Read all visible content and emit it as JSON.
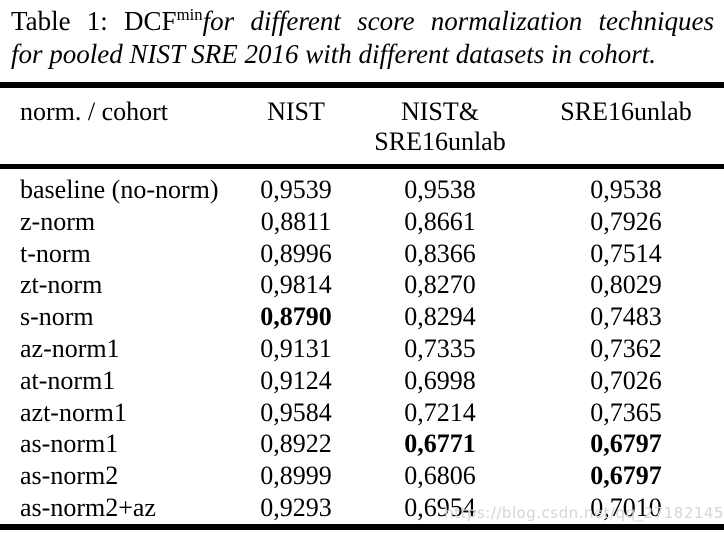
{
  "colors": {
    "background": "#ffffff",
    "text": "#000000",
    "rule": "#000000",
    "watermark": "#d5d5d5"
  },
  "caption": {
    "table_label": "Table 1:",
    "metric": "DCF",
    "metric_superscript": "min",
    "line1_italic": "for different score normalization techniques",
    "line2_italic": "for pooled NIST SRE 2016 with different datasets in cohort."
  },
  "table": {
    "header": {
      "col1": "norm. / cohort",
      "col2": "NIST",
      "col3_line1": "NIST&",
      "col3_line2": "SRE16unlab",
      "col4": "SRE16unlab"
    },
    "rows": [
      {
        "label": "baseline (no-norm)",
        "values": [
          "0,9539",
          "0,9538",
          "0,9538"
        ],
        "bold": [
          false,
          false,
          false
        ]
      },
      {
        "label": "z-norm",
        "values": [
          "0,8811",
          "0,8661",
          "0,7926"
        ],
        "bold": [
          false,
          false,
          false
        ]
      },
      {
        "label": "t-norm",
        "values": [
          "0,8996",
          "0,8366",
          "0,7514"
        ],
        "bold": [
          false,
          false,
          false
        ]
      },
      {
        "label": "zt-norm",
        "values": [
          "0,9814",
          "0,8270",
          "0,8029"
        ],
        "bold": [
          false,
          false,
          false
        ]
      },
      {
        "label": "s-norm",
        "values": [
          "0,8790",
          "0,8294",
          "0,7483"
        ],
        "bold": [
          true,
          false,
          false
        ]
      },
      {
        "label": "az-norm1",
        "values": [
          "0,9131",
          "0,7335",
          "0,7362"
        ],
        "bold": [
          false,
          false,
          false
        ]
      },
      {
        "label": "at-norm1",
        "values": [
          "0,9124",
          "0,6998",
          "0,7026"
        ],
        "bold": [
          false,
          false,
          false
        ]
      },
      {
        "label": "azt-norm1",
        "values": [
          "0,9584",
          "0,7214",
          "0,7365"
        ],
        "bold": [
          false,
          false,
          false
        ]
      },
      {
        "label": "as-norm1",
        "values": [
          "0,8922",
          "0,6771",
          "0,6797"
        ],
        "bold": [
          false,
          true,
          true
        ]
      },
      {
        "label": "as-norm2",
        "values": [
          "0,8999",
          "0,6806",
          "0,6797"
        ],
        "bold": [
          false,
          false,
          true
        ]
      },
      {
        "label": "as-norm2+az",
        "values": [
          "0,9293",
          "0,6954",
          "0,7010"
        ],
        "bold": [
          false,
          false,
          false
        ]
      }
    ]
  },
  "watermark": {
    "text": "https://blog.csdn.net/qq_27182145"
  }
}
